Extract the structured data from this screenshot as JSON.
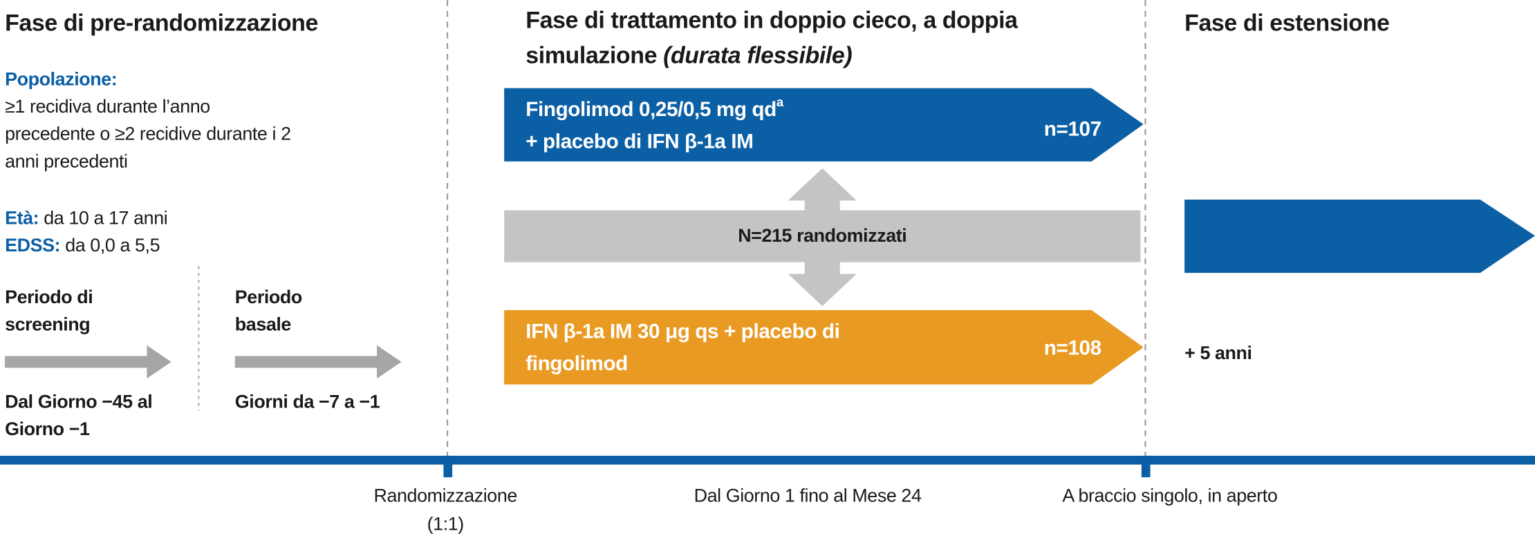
{
  "pre_randomization": {
    "title": "Fase di pre-randomizzazione",
    "population_label": "Popolazione:",
    "population_lines": [
      "≥1 recidiva durante l’anno",
      "precedente o ≥2 recidive durante i 2",
      "anni precedenti"
    ],
    "age_label": "Età:",
    "age_value": "da 10 a 17 anni",
    "edss_label": "EDSS:",
    "edss_value": "da 0,0 a 5,5",
    "screening": {
      "title_lines": [
        "Periodo di",
        "screening"
      ],
      "days_lines": [
        "Dal Giorno −45 al",
        "Giorno −1"
      ]
    },
    "baseline": {
      "title_lines": [
        "Periodo",
        "basale"
      ],
      "days_lines": [
        "Giorni da −7 a −1"
      ]
    }
  },
  "treatment": {
    "title_lines": [
      "Fase di trattamento in doppio cieco, a doppia",
      "simulazione"
    ],
    "title_italic": "(durata flessibile)",
    "arm_1": {
      "lines": [
        "Fingolimod  0,25/0,5 mg qd",
        "+ placebo di IFN β-1a IM"
      ],
      "superscript": "a",
      "n": "n=107"
    },
    "randomized": "N=215 randomizzati",
    "arm_2": {
      "lines": [
        "IFN β-1a IM 30 μg qs + placebo di",
        "fingolimod"
      ],
      "n": "n=108"
    }
  },
  "extension": {
    "title": "Fase di estensione",
    "duration": "+ 5 anni"
  },
  "timeline": {
    "randomization_lines": [
      "Randomizzazione",
      "(1:1)"
    ],
    "treatment_period": "Dal Giorno 1 fino al Mese 24",
    "extension_period": "A braccio singolo, in aperto"
  }
}
